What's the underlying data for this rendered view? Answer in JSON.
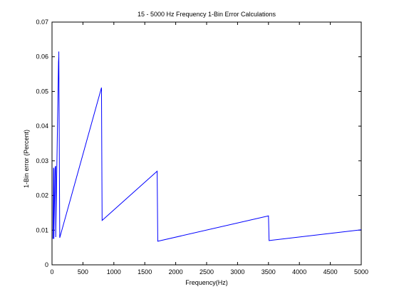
{
  "chart_data": {
    "type": "line",
    "title": "15 - 5000 Hz Frequency 1-Bin Error Calculations",
    "xlabel": "Frequency(Hz)",
    "ylabel": "1-Bin error (Percent)",
    "xlim": [
      0,
      5000
    ],
    "ylim": [
      0,
      0.07
    ],
    "x_ticks": [
      0,
      500,
      1000,
      1500,
      2000,
      2500,
      3000,
      3500,
      4000,
      4500,
      5000
    ],
    "x_tick_labels": [
      "0",
      "500",
      "1000",
      "1500",
      "2000",
      "2500",
      "3000",
      "3500",
      "4000",
      "4500",
      "5000"
    ],
    "y_ticks": [
      0,
      0.01,
      0.02,
      0.03,
      0.04,
      0.05,
      0.06,
      0.07
    ],
    "y_tick_labels": [
      "0",
      "0.01",
      "0.02",
      "0.03",
      "0.04",
      "0.05",
      "0.06",
      "0.07"
    ],
    "grid": false,
    "legend": false,
    "series": [
      {
        "color": "#0000ff",
        "x": [
          15,
          25,
          30,
          30,
          50,
          60,
          60,
          105,
          110,
          110,
          125,
          800,
          810,
          1700,
          1710,
          3500,
          3510,
          5000
        ],
        "y": [
          0.0075,
          0.028,
          0.0275,
          0.0075,
          0.028,
          0.0285,
          0.008,
          0.0585,
          0.06,
          0.0615,
          0.0078,
          0.0511,
          0.0128,
          0.027,
          0.0068,
          0.0141,
          0.007,
          0.0101
        ]
      }
    ]
  }
}
